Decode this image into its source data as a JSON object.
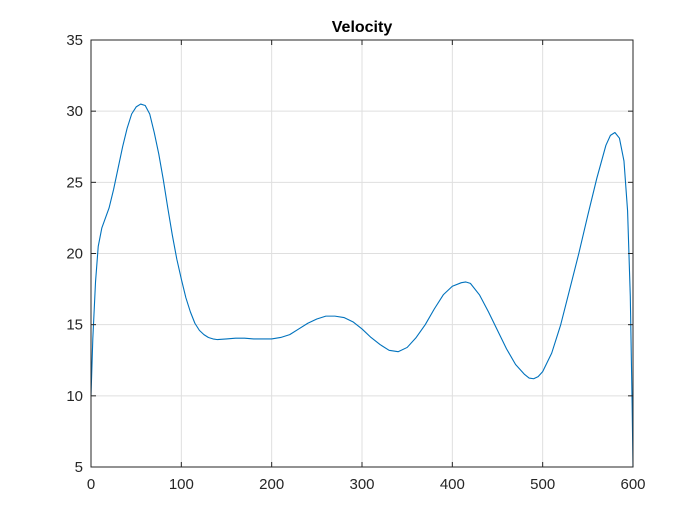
{
  "chart_data": {
    "type": "line",
    "title": "Velocity",
    "xlabel": "",
    "ylabel": "",
    "xlim": [
      0,
      600
    ],
    "ylim": [
      5,
      35
    ],
    "xticks": [
      0,
      100,
      200,
      300,
      400,
      500,
      600
    ],
    "yticks": [
      5,
      10,
      15,
      20,
      25,
      30,
      35
    ],
    "grid": true,
    "legend": "none",
    "series": [
      {
        "color": "#0072BD",
        "x": [
          0,
          2,
          5,
          8,
          12,
          16,
          20,
          25,
          30,
          35,
          40,
          45,
          50,
          55,
          60,
          65,
          70,
          75,
          80,
          85,
          90,
          95,
          100,
          105,
          110,
          115,
          120,
          125,
          130,
          135,
          140,
          150,
          160,
          170,
          180,
          190,
          200,
          210,
          220,
          230,
          240,
          250,
          260,
          270,
          280,
          290,
          300,
          310,
          320,
          330,
          340,
          350,
          360,
          370,
          380,
          390,
          400,
          410,
          415,
          420,
          430,
          440,
          450,
          460,
          470,
          480,
          485,
          490,
          495,
          500,
          510,
          520,
          530,
          540,
          550,
          560,
          570,
          575,
          580,
          585,
          590,
          594,
          597,
          599,
          600
        ],
        "y": [
          10.0,
          14.0,
          18.0,
          20.5,
          21.8,
          22.5,
          23.2,
          24.5,
          26.0,
          27.5,
          28.8,
          29.8,
          30.3,
          30.5,
          30.4,
          29.8,
          28.5,
          27.0,
          25.2,
          23.2,
          21.3,
          19.6,
          18.2,
          16.9,
          15.9,
          15.1,
          14.6,
          14.3,
          14.1,
          14.0,
          13.95,
          14.0,
          14.05,
          14.05,
          14.0,
          14.0,
          14.0,
          14.1,
          14.3,
          14.7,
          15.1,
          15.4,
          15.6,
          15.6,
          15.5,
          15.2,
          14.7,
          14.1,
          13.6,
          13.2,
          13.1,
          13.4,
          14.1,
          15.0,
          16.1,
          17.1,
          17.7,
          17.95,
          18.0,
          17.9,
          17.1,
          15.9,
          14.6,
          13.3,
          12.2,
          11.5,
          11.25,
          11.2,
          11.35,
          11.7,
          13.0,
          15.0,
          17.5,
          20.0,
          22.7,
          25.3,
          27.6,
          28.3,
          28.5,
          28.1,
          26.5,
          23.0,
          17.0,
          9.5,
          5.0
        ]
      }
    ]
  }
}
